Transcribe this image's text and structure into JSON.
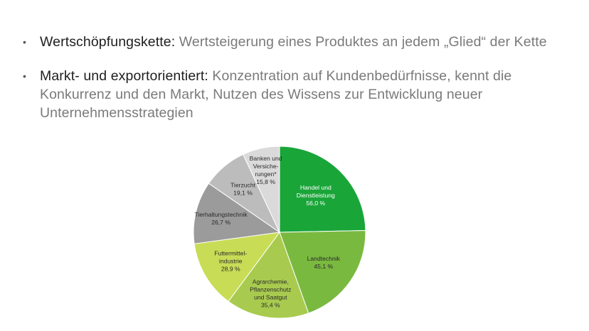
{
  "bullets": [
    {
      "term": "Wertschöpfungskette:",
      "text": " Wertsteigerung eines Produktes an jedem „Glied“ der Kette"
    },
    {
      "term": "Markt- und exportorientiert:",
      "text": " Konzentration auf Kundenbedürfnisse, kennt die Konkurrenz und den Markt, Nutzen des Wissens zur Entwicklung neuer Unternehmensstrategien"
    }
  ],
  "bullet_symbol": "•",
  "chart_data": {
    "type": "pie",
    "title": "",
    "slices": [
      {
        "label_lines": [
          "Handel und",
          "Dienstleistung"
        ],
        "value_text": "56,0 %",
        "value": 56.0,
        "color": "#1aa539",
        "text_color": "#ffffff"
      },
      {
        "label_lines": [
          "Landtechnik"
        ],
        "value_text": "45,1 %",
        "value": 45.1,
        "color": "#7ab940",
        "text_color": "#2a2a2a"
      },
      {
        "label_lines": [
          "Agrarchemie,",
          "Pflanzenschutz",
          "und Saatgut"
        ],
        "value_text": "35,4 %",
        "value": 35.4,
        "color": "#a8cb4f",
        "text_color": "#2a2a2a"
      },
      {
        "label_lines": [
          "Futtermittel-",
          "industrie"
        ],
        "value_text": "28,9 %",
        "value": 28.9,
        "color": "#c8dc56",
        "text_color": "#2a2a2a"
      },
      {
        "label_lines": [
          "Tierhaltungstechnik"
        ],
        "value_text": "26,7 %",
        "value": 26.7,
        "color": "#9b9b9b",
        "text_color": "#2a2a2a"
      },
      {
        "label_lines": [
          "Tierzucht"
        ],
        "value_text": "19,1 %",
        "value": 19.1,
        "color": "#bcbcbc",
        "text_color": "#2a2a2a"
      },
      {
        "label_lines": [
          "Banken und",
          "Versiche-",
          "rungen*"
        ],
        "value_text": "15,8 %",
        "value": 15.8,
        "color": "#dadada",
        "text_color": "#2a2a2a"
      }
    ]
  }
}
